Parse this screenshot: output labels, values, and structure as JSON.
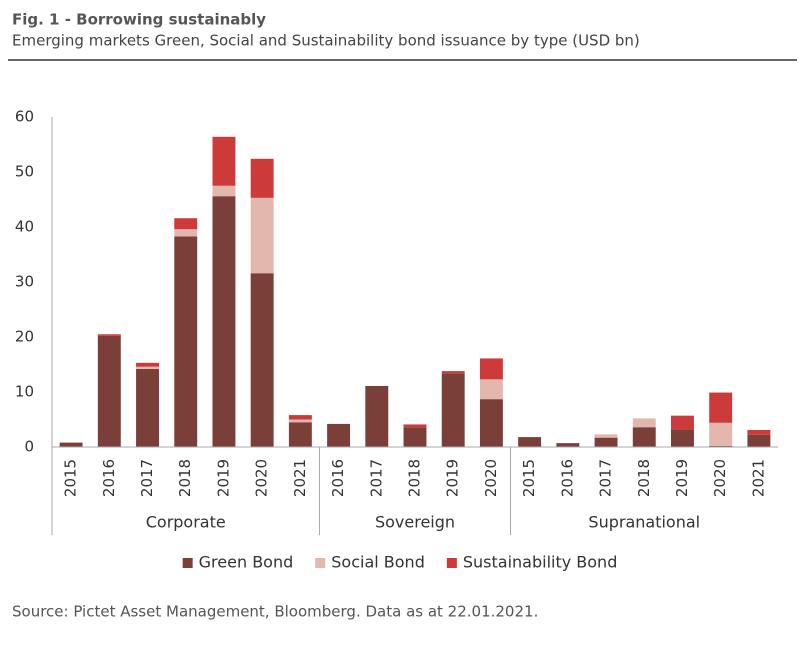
{
  "chart_data": {
    "type": "stacked_bar",
    "title": "Fig. 1 - Borrowing sustainably",
    "subtitle": "Emerging markets Green, Social and Sustainability bond issuance by type (USD bn)",
    "source": "Source: Pictet Asset Management, Bloomberg. Data as at 22.01.2021.",
    "groups": [
      {
        "name": "Corporate",
        "categories": [
          "2015",
          "2016",
          "2017",
          "2018",
          "2019",
          "2020",
          "2021"
        ]
      },
      {
        "name": "Sovereign",
        "categories": [
          "2016",
          "2017",
          "2018",
          "2019",
          "2020"
        ]
      },
      {
        "name": "Supranational",
        "categories": [
          "2015",
          "2016",
          "2017",
          "2018",
          "2019",
          "2020",
          "2021"
        ]
      }
    ],
    "series": [
      {
        "name": "Green Bond",
        "color": "#7b3f3a",
        "values": [
          0.8,
          20.2,
          14.2,
          38.3,
          45.6,
          31.6,
          4.5,
          4.2,
          11.1,
          3.6,
          13.4,
          8.7,
          1.8,
          0.7,
          1.7,
          3.6,
          3.2,
          0.2,
          2.2
        ]
      },
      {
        "name": "Social Bond",
        "color": "#e2b8ae",
        "values": [
          0,
          0,
          0.4,
          1.3,
          1.9,
          13.7,
          0.5,
          0,
          0,
          0,
          0,
          3.6,
          0,
          0,
          0.6,
          1.6,
          0,
          4.2,
          0
        ]
      },
      {
        "name": "Sustainability Bond",
        "color": "#cc3a3a",
        "values": [
          0,
          0.3,
          0.7,
          2.0,
          8.9,
          7.1,
          0.8,
          0,
          0,
          0.5,
          0.4,
          3.8,
          0,
          0,
          0,
          0,
          2.5,
          5.5,
          0.9
        ]
      }
    ],
    "ylim": [
      0,
      60
    ],
    "yticks": [
      0,
      10,
      20,
      30,
      40,
      50,
      60
    ],
    "grid": false,
    "legend": "bottom"
  }
}
